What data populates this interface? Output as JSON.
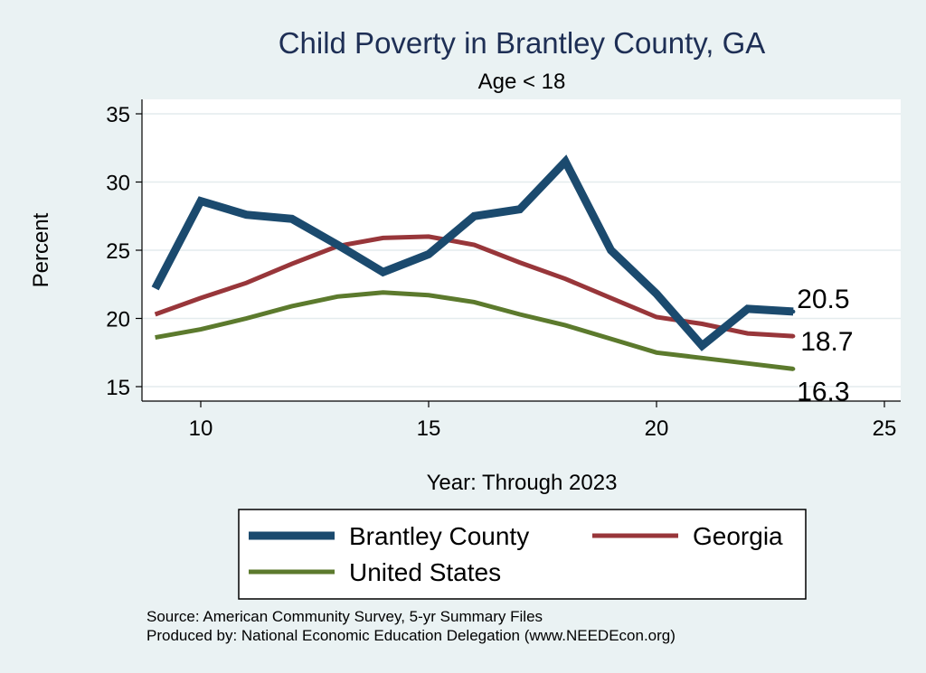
{
  "chart_data": {
    "type": "line",
    "title": "Child Poverty in Brantley County, GA",
    "subtitle": "Age < 18",
    "xlabel": "Year: Through 2023",
    "ylabel": "Percent",
    "xlim": [
      9,
      25
    ],
    "ylim": [
      14.2,
      35.5
    ],
    "xticks": [
      10,
      15,
      20,
      25
    ],
    "yticks": [
      15,
      20,
      25,
      30,
      35
    ],
    "grid": true,
    "x": [
      9,
      10,
      11,
      12,
      13,
      14,
      15,
      16,
      17,
      18,
      19,
      20,
      21,
      22,
      23
    ],
    "series": [
      {
        "name": "Brantley County",
        "color": "#1b4a6e",
        "width": 9,
        "values": [
          22.2,
          28.6,
          27.6,
          27.3,
          25.4,
          23.4,
          24.7,
          27.5,
          28.0,
          31.5,
          25.0,
          21.8,
          18.0,
          20.7,
          20.5
        ],
        "end_label": "20.5"
      },
      {
        "name": "Georgia",
        "color": "#98363a",
        "width": 5,
        "values": [
          20.3,
          21.5,
          22.6,
          24.0,
          25.3,
          25.9,
          26.0,
          25.4,
          24.1,
          22.9,
          21.5,
          20.1,
          19.6,
          18.9,
          18.7
        ],
        "end_label": "18.7"
      },
      {
        "name": "United States",
        "color": "#5c7a2d",
        "width": 5,
        "values": [
          18.6,
          19.2,
          20.0,
          20.9,
          21.6,
          21.9,
          21.7,
          21.2,
          20.3,
          19.5,
          18.5,
          17.5,
          17.1,
          16.7,
          16.3
        ],
        "end_label": "16.3"
      }
    ]
  },
  "source_note": "Source: American Community Survey, 5-yr Summary Files",
  "producer_note": "Produced by: National Economic Education Delegation (www.NEEDEcon.org)"
}
